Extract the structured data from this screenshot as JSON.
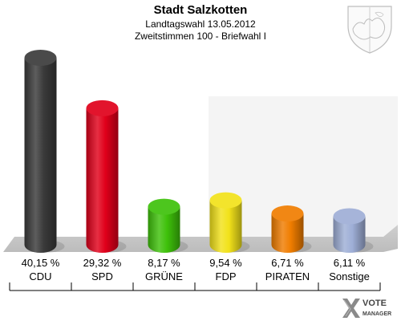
{
  "chart_data": {
    "type": "bar",
    "title": "Stadt Salzkotten",
    "subtitle_line1": "Landtagswahl 13.05.2012",
    "subtitle_line2": "Zweitstimmen 100 - Briefwahl I",
    "categories": [
      "CDU",
      "SPD",
      "GRÜNE",
      "FDP",
      "PIRATEN",
      "Sonstige"
    ],
    "values": [
      40.15,
      29.32,
      8.17,
      9.54,
      6.71,
      6.11
    ],
    "value_labels": [
      "40,15 %",
      "29,32 %",
      "8,17 %",
      "9,54 %",
      "6,71 %",
      "6,11 %"
    ],
    "colors": [
      "#3a3a3a",
      "#e0001a",
      "#3ec10a",
      "#f2e21a",
      "#f07d00",
      "#9eaed6"
    ],
    "ylim": [
      0,
      40.15
    ]
  },
  "branding": {
    "line1": "VOTE",
    "line2": "MANAGER"
  },
  "icons": {
    "crest": "coat-of-arms-icon",
    "logo": "vote-manager-logo-icon"
  }
}
